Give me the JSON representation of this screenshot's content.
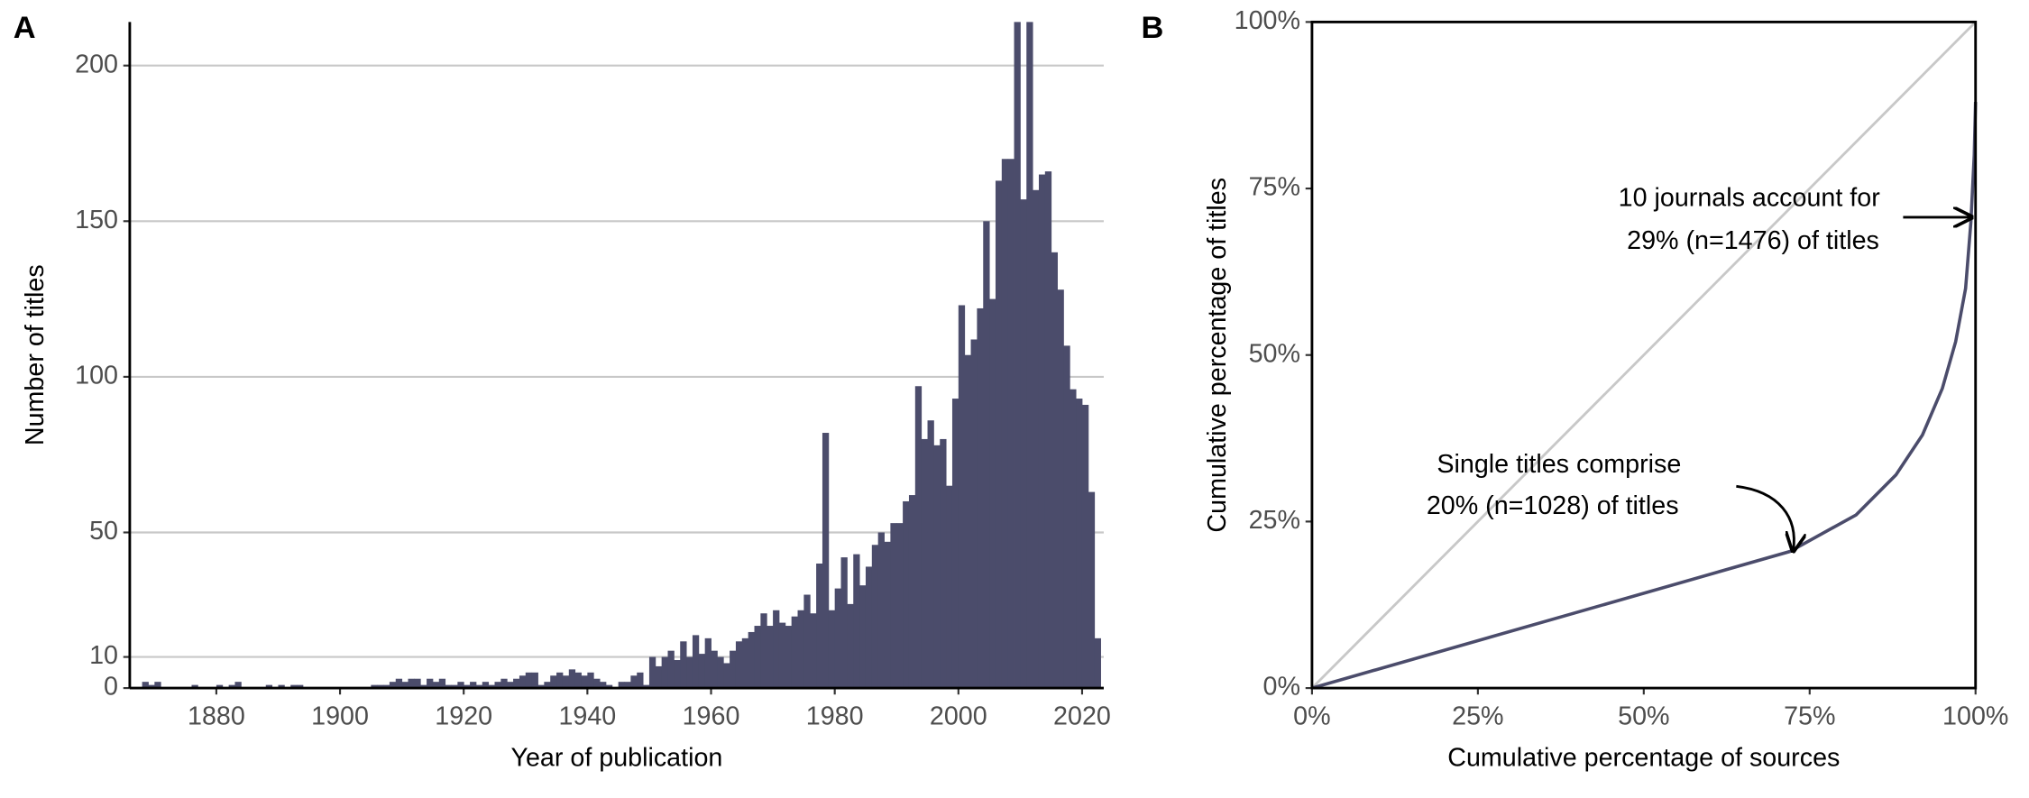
{
  "chart_data": [
    {
      "type": "histogram",
      "panel": "A",
      "xlabel": "Year of publication",
      "ylabel": "Number of titles",
      "color": "#4b4c6b",
      "grid": true,
      "xlim": [
        1866,
        2023.5
      ],
      "xticks": [
        1880,
        1900,
        1920,
        1940,
        1960,
        1980,
        2000,
        2020
      ],
      "ylim": [
        0,
        214
      ],
      "yticks": [
        0,
        10,
        50,
        100,
        150,
        200
      ],
      "bins": [
        1868,
        1869,
        1870,
        1871,
        1872,
        1873,
        1874,
        1875,
        1876,
        1877,
        1878,
        1879,
        1880,
        1881,
        1882,
        1883,
        1884,
        1885,
        1886,
        1887,
        1888,
        1889,
        1890,
        1891,
        1892,
        1893,
        1894,
        1895,
        1896,
        1897,
        1898,
        1899,
        1900,
        1901,
        1902,
        1903,
        1904,
        1905,
        1906,
        1907,
        1908,
        1909,
        1910,
        1911,
        1912,
        1913,
        1914,
        1915,
        1916,
        1917,
        1918,
        1919,
        1920,
        1921,
        1922,
        1923,
        1924,
        1925,
        1926,
        1927,
        1928,
        1929,
        1930,
        1931,
        1932,
        1933,
        1934,
        1935,
        1936,
        1937,
        1938,
        1939,
        1940,
        1941,
        1942,
        1943,
        1944,
        1945,
        1946,
        1947,
        1948,
        1949,
        1950,
        1951,
        1952,
        1953,
        1954,
        1955,
        1956,
        1957,
        1958,
        1959,
        1960,
        1961,
        1962,
        1963,
        1964,
        1965,
        1966,
        1967,
        1968,
        1969,
        1970,
        1971,
        1972,
        1973,
        1974,
        1975,
        1976,
        1977,
        1978,
        1979,
        1980,
        1981,
        1982,
        1983,
        1984,
        1985,
        1986,
        1987,
        1988,
        1989,
        1990,
        1991,
        1992,
        1993,
        1994,
        1995,
        1996,
        1997,
        1998,
        1999,
        2000,
        2001,
        2002,
        2003,
        2004,
        2005,
        2006,
        2007,
        2008,
        2009,
        2010,
        2011,
        2012,
        2013,
        2014,
        2015,
        2016,
        2017,
        2018,
        2019,
        2020,
        2021,
        2022,
        2023
      ],
      "values": [
        2,
        1,
        2,
        0,
        0,
        0,
        0,
        0,
        1,
        0,
        0,
        0,
        1,
        0,
        1,
        2,
        0,
        0,
        0,
        0,
        1,
        0,
        1,
        0,
        1,
        1,
        0,
        0,
        0,
        0,
        0,
        0,
        0,
        0,
        0,
        0,
        0,
        1,
        1,
        1,
        2,
        3,
        2,
        3,
        3,
        1,
        3,
        2,
        3,
        1,
        1,
        2,
        1,
        2,
        1,
        2,
        1,
        2,
        3,
        2,
        3,
        4,
        5,
        5,
        1,
        2,
        4,
        5,
        4,
        6,
        5,
        4,
        5,
        3,
        2,
        1,
        0,
        2,
        2,
        4,
        5,
        1,
        10,
        7,
        10,
        12,
        9,
        15,
        10,
        17,
        11,
        16,
        12,
        10,
        8,
        12,
        15,
        16,
        18,
        20,
        24,
        20,
        25,
        21,
        20,
        23,
        25,
        30,
        24,
        40,
        82,
        25,
        32,
        42,
        27,
        43,
        33,
        39,
        46,
        50,
        47,
        53,
        53,
        60,
        62,
        97,
        80,
        86,
        78,
        80,
        65,
        93,
        123,
        107,
        112,
        122,
        150,
        125,
        163,
        170,
        170,
        214,
        157,
        214,
        160,
        165,
        166,
        140,
        128,
        110,
        96,
        93,
        91,
        63,
        16
      ]
    },
    {
      "type": "line",
      "panel": "B",
      "xlabel": "Cumulative percentage of sources",
      "ylabel": "Cumulative percentage of titles",
      "color": "#4b4c6b",
      "grid": false,
      "xlim": [
        0,
        100
      ],
      "xticks": [
        {
          "value": 0,
          "label": "0%"
        },
        {
          "value": 25,
          "label": "25%"
        },
        {
          "value": 50,
          "label": "50%"
        },
        {
          "value": 75,
          "label": "75%"
        },
        {
          "value": 100,
          "label": "100%"
        }
      ],
      "ylim": [
        0,
        100
      ],
      "yticks": [
        {
          "value": 0,
          "label": "0%"
        },
        {
          "value": 25,
          "label": "25%"
        },
        {
          "value": 50,
          "label": "50%"
        },
        {
          "value": 75,
          "label": "75%"
        },
        {
          "value": 100,
          "label": "100%"
        }
      ],
      "x": [
        0,
        72,
        82,
        88,
        92,
        95,
        97,
        98.5,
        99.3,
        99.8,
        100
      ],
      "values": [
        0,
        20.5,
        26,
        32,
        38,
        45,
        52,
        60,
        70,
        80,
        88
      ],
      "annotations": [
        "10 journals account for",
        "29% (n=1476) of titles",
        "Single titles comprise",
        "20% (n=1028) of titles"
      ]
    }
  ]
}
